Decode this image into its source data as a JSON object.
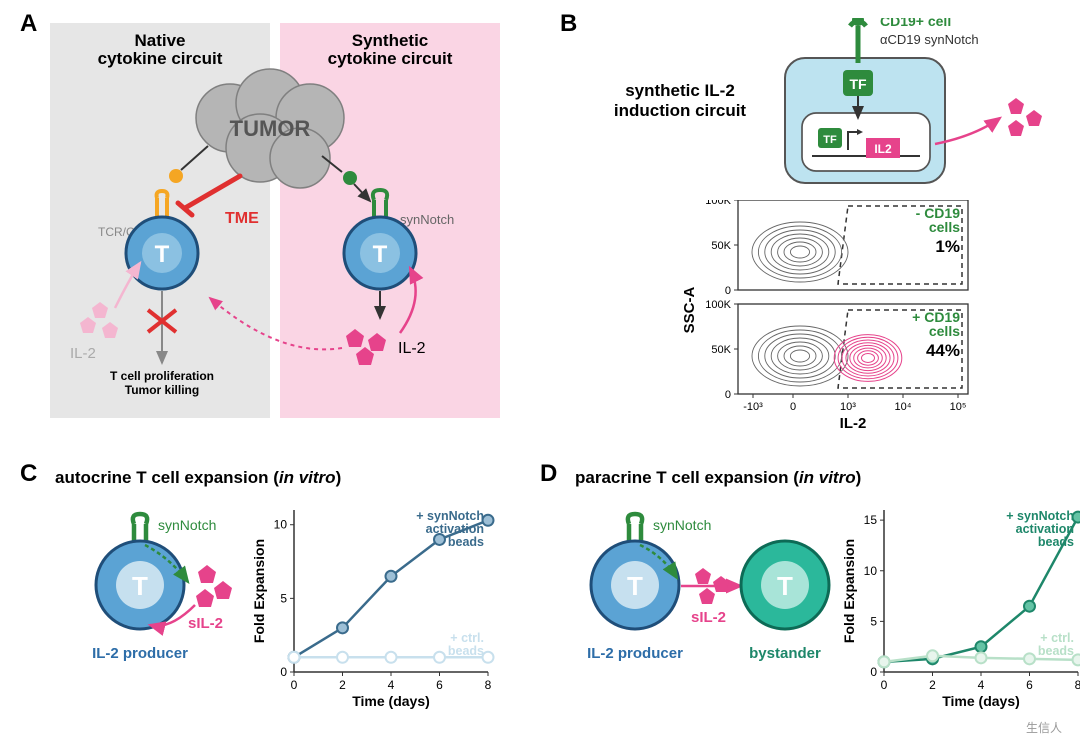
{
  "panelA": {
    "label": "A",
    "nativeTitle": "Native\ncytokine circuit",
    "syntheticTitle": "Synthetic\ncytokine circuit",
    "tumor": "TUMOR",
    "tcr": "TCR/CAR",
    "tme": "TME",
    "synNotch": "synNotch",
    "il2": "IL-2",
    "tCell": "T",
    "proliferation": "T cell proliferation\nTumor killing",
    "bg_native": "#e6e6e6",
    "bg_synthetic": "#fad5e4",
    "tumor_fill": "#b5b5b5",
    "tcell_fill": "#5ba3d4",
    "tcell_stroke": "#1f4e79",
    "tcr_color": "#f5a623",
    "tme_color": "#e03030",
    "synnotch_color": "#2e8b3d",
    "il2_color": "#e6438b",
    "il2_faint": "#f4b6d0"
  },
  "panelB": {
    "label": "B",
    "circuitTitle": "synthetic IL-2\ninduction circuit",
    "cd19cell": "CD19+ cell",
    "aCD19": "αCD19 synNotch",
    "tf": "TF",
    "il2box": "IL2",
    "xlabel": "IL-2",
    "ylabel": "SSC-A",
    "yticks": [
      "0",
      "50K",
      "100K"
    ],
    "xticks": [
      "-10³",
      "0",
      "10³",
      "10⁴",
      "10⁵"
    ],
    "plots": [
      {
        "cond": "- CD19\ncells",
        "pct": "1%",
        "hasPink": false
      },
      {
        "cond": "+ CD19\ncells",
        "pct": "44%",
        "hasPink": true
      }
    ],
    "cell_bg": "#bde3f0",
    "tf_fill": "#2e8b3d",
    "il2_fill": "#e6438b",
    "contour_gray": "#666",
    "contour_pink": "#e6438b"
  },
  "panelC": {
    "label": "C",
    "title": "autocrine T cell expansion (in vitro)",
    "synNotch": "synNotch",
    "sil2": "sIL-2",
    "producer": "IL-2 producer",
    "chart": {
      "xlabel": "Time (days)",
      "ylabel": "Fold Expansion",
      "xlim": [
        0,
        8
      ],
      "ylim": [
        0,
        11
      ],
      "xticks": [
        0,
        2,
        4,
        6,
        8
      ],
      "yticks": [
        0,
        5,
        10
      ],
      "series": [
        {
          "label": "+ synNotch\nactivation\nbeads",
          "color": "#3a6b8c",
          "fill": "#9dbfd6",
          "data": [
            [
              0,
              1
            ],
            [
              2,
              3
            ],
            [
              4,
              6.5
            ],
            [
              6,
              9
            ],
            [
              8,
              10.3
            ]
          ]
        },
        {
          "label": "+ ctrl.\nbeads",
          "color": "#c8e0ed",
          "fill": "#ffffff",
          "data": [
            [
              0,
              1
            ],
            [
              2,
              1
            ],
            [
              4,
              1
            ],
            [
              6,
              1
            ],
            [
              8,
              1
            ]
          ]
        }
      ]
    }
  },
  "panelD": {
    "label": "D",
    "title": "paracrine T cell expansion (in vitro)",
    "synNotch": "synNotch",
    "sil2": "sIL-2",
    "producer": "IL-2 producer",
    "bystander": "bystander",
    "bystander_fill": "#2bb89b",
    "bystander_inner": "#a8e4d8",
    "chart": {
      "xlabel": "Time (days)",
      "ylabel": "Fold Expansion",
      "xlim": [
        0,
        8
      ],
      "ylim": [
        0,
        16
      ],
      "xticks": [
        0,
        2,
        4,
        6,
        8
      ],
      "yticks": [
        0,
        5,
        10,
        15
      ],
      "series": [
        {
          "label": "+ synNotch\nactivation\nbeads",
          "color": "#1e876a",
          "fill": "#64c3a5",
          "data": [
            [
              0,
              1
            ],
            [
              2,
              1.3
            ],
            [
              4,
              2.5
            ],
            [
              6,
              6.5
            ],
            [
              8,
              15.3
            ]
          ]
        },
        {
          "label": "+ ctrl.\nbeads",
          "color": "#b8e0c8",
          "fill": "#e8f5ed",
          "data": [
            [
              0,
              1
            ],
            [
              2,
              1.6
            ],
            [
              4,
              1.4
            ],
            [
              6,
              1.3
            ],
            [
              8,
              1.2
            ]
          ]
        }
      ]
    }
  },
  "watermark": "生信人"
}
